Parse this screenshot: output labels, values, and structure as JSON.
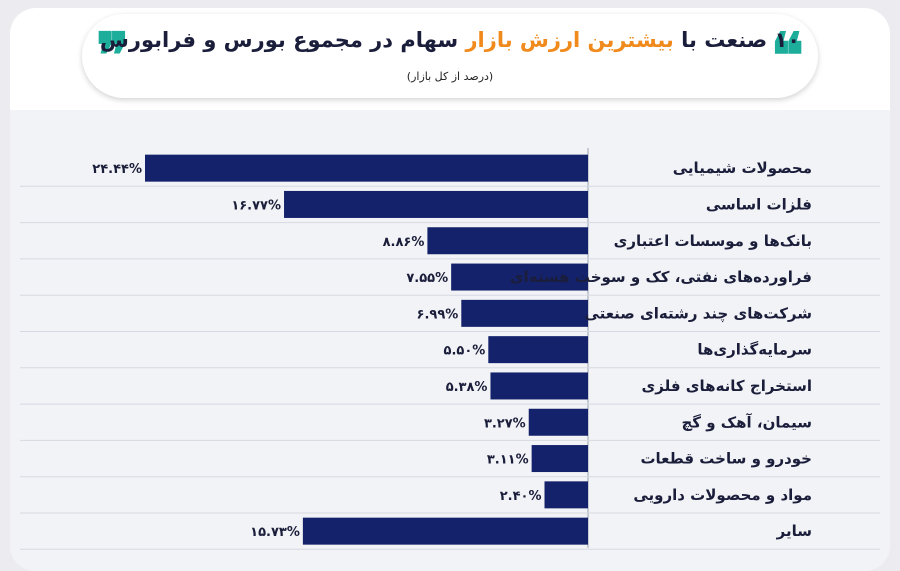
{
  "header": {
    "title_pre": "۱۰ صنعت با ",
    "title_highlight": "بیشترین ارزش بازار",
    "title_post": " سهام در مجموع بورس و فرابورس",
    "subtitle": "(درصد از کل بازار)",
    "quote_open": "❞",
    "quote_close": "❝"
  },
  "colors": {
    "bar": "#14226b",
    "accent": "#f08a1c",
    "quote": "#1cae9a"
  },
  "chart_data": {
    "type": "bar",
    "orientation": "horizontal",
    "title": "۱۰ صنعت با بیشترین ارزش بازار سهام در مجموع بورس و فرابورس",
    "subtitle": "(درصد از کل بازار)",
    "categories": [
      "محصولات شیمیایی",
      "فلزات اساسی",
      "بانک‌ها و موسسات اعتباری",
      "فراورده‌های نفتی، کک و سوخت هسته‌ای",
      "شرکت‌های چند رشته‌ای صنعتی",
      "سرمایه‌گذاری‌ها",
      "استخراج کانه‌های فلزی",
      "سیمان، آهک و گچ",
      "خودرو و ساخت قطعات",
      "مواد و محصولات دارویی",
      "سایر"
    ],
    "values": [
      24.44,
      16.77,
      8.86,
      7.55,
      6.99,
      5.5,
      5.38,
      3.27,
      3.11,
      2.4,
      15.73
    ],
    "value_labels": [
      "۲۴.۴۴%",
      "۱۶.۷۷%",
      "۸.۸۶%",
      "۷.۵۵%",
      "۶.۹۹%",
      "۵.۵۰%",
      "۵.۳۸%",
      "۳.۲۷%",
      "۳.۱۱%",
      "۲.۴۰%",
      "۱۵.۷۳%"
    ],
    "xlim": [
      0,
      24.44
    ],
    "grid": true
  }
}
